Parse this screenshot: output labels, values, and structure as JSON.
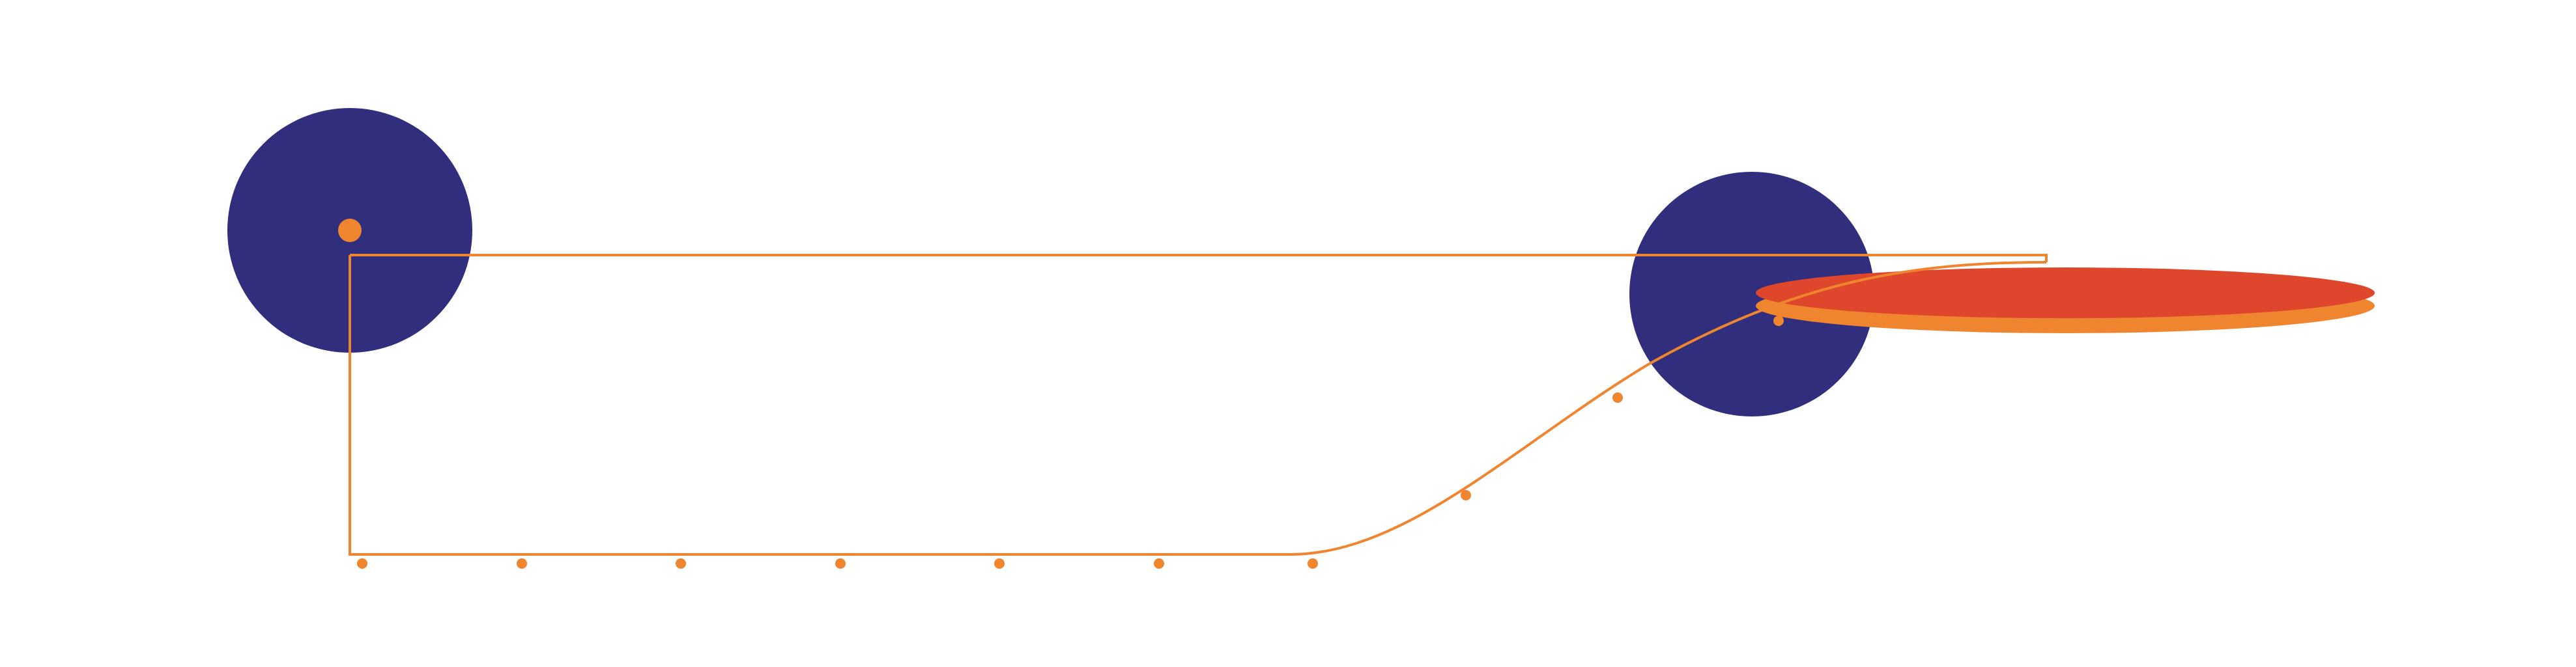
{
  "colors": {
    "background": "#ffffff",
    "circle_fill": "#312e7e",
    "line_orange": "#f0852f",
    "ellipse_red": "#df472d",
    "ellipse_shadow": "#f0852f"
  },
  "shapes": {
    "circles": [
      "large-circle-left",
      "large-circle-right"
    ],
    "ellipses": [
      "flat-ellipse-red",
      "flat-ellipse-orange"
    ],
    "dot_count": 12
  }
}
